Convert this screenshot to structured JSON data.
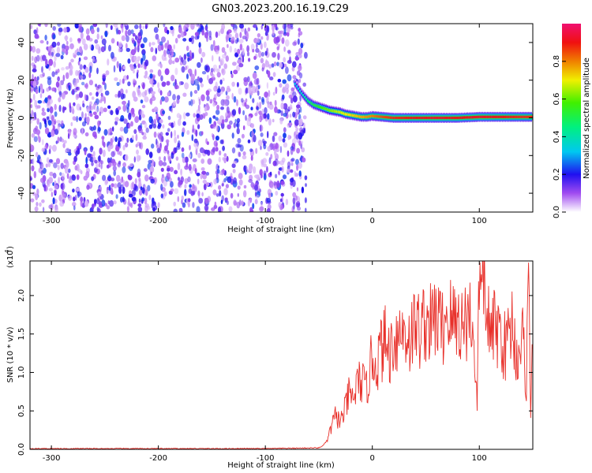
{
  "figure_title": "GN03.2023.200.16.19.C29",
  "chart_data": [
    {
      "type": "heatmap",
      "title": "",
      "xlabel": "Height of straight line (km)",
      "ylabel": "Frequency (Hz)",
      "xlim": [
        -320,
        150
      ],
      "ylim": [
        -50,
        50
      ],
      "xticks": [
        -300,
        -200,
        -100,
        0,
        100
      ],
      "yticks": [
        -40,
        -20,
        0,
        20,
        40
      ],
      "colorbar": {
        "label": "Normalized spectral amplitude",
        "range": [
          0,
          1
        ],
        "ticks": [
          0.0,
          0.2,
          0.4,
          0.6,
          0.8
        ],
        "colormap": "rainbow (white, violet, blue, cyan, green, yellow, orange, red, magenta)"
      },
      "noise_region": {
        "x_range": [
          -320,
          -62
        ],
        "frequency_range": [
          -50,
          50
        ],
        "amplitude_range": [
          0.0,
          0.2
        ]
      },
      "signal_track": {
        "x": [
          -72,
          -66,
          -60,
          -55,
          -50,
          -45,
          -40,
          -35,
          -30,
          -25,
          -20,
          -15,
          -10,
          -5,
          0,
          10,
          20,
          40,
          60,
          80,
          100,
          120,
          140,
          150
        ],
        "frequency": [
          18,
          13,
          9,
          7,
          6,
          5,
          4,
          3.5,
          3,
          2,
          1.5,
          1,
          0.5,
          0.5,
          1,
          0.5,
          0,
          0,
          0,
          0,
          0.5,
          0.5,
          0.5,
          0.5
        ],
        "peak_amplitude": [
          0.3,
          0.35,
          0.45,
          0.5,
          0.55,
          0.6,
          0.62,
          0.65,
          0.68,
          0.7,
          0.72,
          0.74,
          0.76,
          0.78,
          0.8,
          0.85,
          0.88,
          0.9,
          0.92,
          0.9,
          0.92,
          0.9,
          0.88,
          0.88
        ]
      }
    },
    {
      "type": "line",
      "title": "",
      "xlabel": "Height of straight line (km)",
      "ylabel": "SNR (10 * v/v)",
      "y_multiplier_label": "(x10",
      "y_multiplier_exponent": "4",
      "y_multiplier_close": ")",
      "xlim": [
        -320,
        150
      ],
      "ylim": [
        0,
        2.45
      ],
      "xticks": [
        -300,
        -200,
        -100,
        0,
        100
      ],
      "yticks": [
        0.0,
        0.5,
        1.0,
        1.5,
        2.0
      ],
      "ytick_labels": [
        "0.0",
        "0.5",
        "1.0",
        "1.5",
        "2.0"
      ],
      "series": [
        {
          "color": "#e8302a",
          "x": [
            -320,
            -200,
            -100,
            -50,
            -46,
            -42,
            -38,
            -34,
            -30,
            -26,
            -22,
            -18,
            -14,
            -10,
            -6,
            -2,
            0,
            4,
            8,
            12,
            16,
            20,
            25,
            30,
            35,
            40,
            45,
            50,
            55,
            60,
            65,
            70,
            75,
            80,
            85,
            90,
            95,
            98,
            100,
            102,
            104,
            106,
            108,
            110,
            115,
            120,
            125,
            130,
            135,
            140,
            144,
            146,
            148,
            150
          ],
          "y": [
            0.01,
            0.01,
            0.01,
            0.02,
            0.05,
            0.12,
            0.3,
            0.45,
            0.35,
            0.5,
            0.7,
            0.65,
            0.85,
            0.9,
            0.75,
            1.05,
            1.2,
            1.1,
            1.3,
            1.4,
            1.25,
            1.45,
            1.5,
            1.55,
            1.45,
            1.6,
            1.55,
            1.7,
            1.6,
            1.75,
            1.55,
            1.8,
            1.65,
            1.7,
            1.6,
            1.8,
            1.5,
            0.5,
            2.45,
            1.7,
            2.45,
            1.6,
            1.9,
            1.4,
            1.6,
            1.5,
            1.3,
            1.7,
            1.2,
            1.5,
            0.9,
            2.3,
            0.6,
            1.3
          ]
        }
      ]
    }
  ]
}
